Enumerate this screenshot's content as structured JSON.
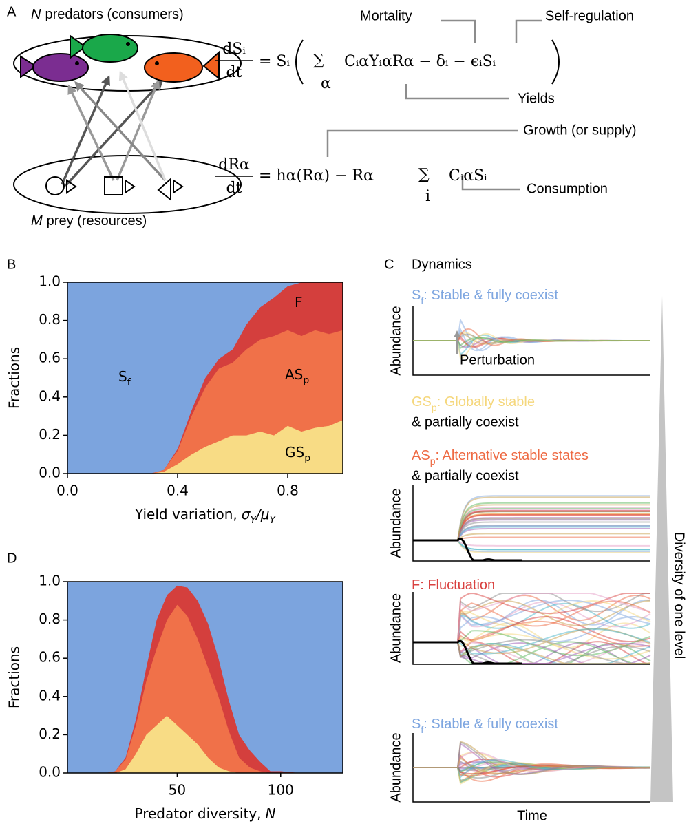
{
  "panel_a": {
    "label": "A",
    "predators": {
      "symbol": "N",
      "text": "predators (consumers)"
    },
    "prey": {
      "symbol": "M",
      "text": "prey (resources)"
    },
    "eq1": {
      "numerator": "dSᵢ",
      "denominator": "dt",
      "rhs": "= Sᵢ",
      "sum": "∑",
      "sum_index": "α",
      "terms": "CᵢαYᵢαRα − δᵢ − ϵᵢSᵢ"
    },
    "eq2": {
      "numerator": "dRα",
      "denominator": "dt",
      "rhs": "= hα(Rα) − Rα",
      "sum": "∑",
      "sum_index": "i",
      "terms": "CᵢαSᵢ"
    },
    "annotations": [
      "Mortality",
      "Self-regulation",
      "Yields",
      "Growth (or supply)",
      "Consumption"
    ]
  },
  "panel_c": {
    "label": "C",
    "title": "Dynamics",
    "y_label": "Abundance",
    "x_label": "Time",
    "side_label": "Diversity of one level",
    "perturbation": "Perturbation",
    "states": [
      {
        "symbol": "S",
        "sub": "f",
        "text": ": Stable & fully coexist",
        "color": "#7ea6e0"
      },
      {
        "symbol": "GS",
        "sub": "p",
        "text": ": Globally stable",
        "text2": "& partially coexist",
        "color": "#f5d77c"
      },
      {
        "symbol": "AS",
        "sub": "p",
        "text": ": Alternative stable states",
        "text2": "& partially coexist",
        "color": "#ee6a43"
      },
      {
        "symbol": "F",
        "text": ": Fluctuation",
        "color": "#d9413f"
      },
      {
        "symbol": "S",
        "sub": "f",
        "text": ": Stable & fully coexist",
        "color": "#7ea6e0"
      }
    ]
  },
  "chart_data": [
    {
      "type": "stacked_area",
      "label": "B",
      "y_label": "Fractions",
      "x_label": "Yield variation,",
      "x_label_symbol": [
        "σ",
        "Y",
        "/μ",
        "Y"
      ],
      "x": [
        0,
        0.05,
        0.1,
        0.15,
        0.2,
        0.25,
        0.3,
        0.35,
        0.4,
        0.45,
        0.5,
        0.55,
        0.6,
        0.65,
        0.7,
        0.75,
        0.8,
        0.85,
        0.9,
        0.95,
        1.0
      ],
      "series": [
        {
          "color": "#f8dc85",
          "values": [
            0,
            0,
            0,
            0,
            0,
            0,
            0,
            0.01,
            0.05,
            0.1,
            0.14,
            0.17,
            0.2,
            0.2,
            0.22,
            0.2,
            0.25,
            0.22,
            0.24,
            0.25,
            0.28
          ]
        },
        {
          "color": "#f07149",
          "values": [
            0,
            0,
            0,
            0,
            0,
            0,
            0,
            0.01,
            0.07,
            0.2,
            0.31,
            0.38,
            0.38,
            0.45,
            0.48,
            0.52,
            0.5,
            0.5,
            0.51,
            0.48,
            0.47
          ]
        },
        {
          "color": "#d43f3d",
          "values": [
            0,
            0,
            0,
            0,
            0,
            0,
            0,
            0,
            0.01,
            0.03,
            0.05,
            0.05,
            0.07,
            0.13,
            0.17,
            0.2,
            0.23,
            0.28,
            0.25,
            0.27,
            0.25
          ]
        },
        {
          "color": "#7ca4de",
          "values": [
            1,
            1,
            1,
            1,
            1,
            1,
            1,
            0.98,
            0.87,
            0.67,
            0.5,
            0.4,
            0.35,
            0.22,
            0.13,
            0.08,
            0.02,
            0,
            0,
            0,
            0
          ]
        }
      ],
      "region_labels": [
        {
          "symbol": "S",
          "sub": "f"
        },
        {
          "symbol": "F"
        },
        {
          "symbol": "AS",
          "sub": "p"
        },
        {
          "symbol": "GS",
          "sub": "p"
        }
      ],
      "xlim": [
        0,
        1.0
      ],
      "xticks": [
        {
          "value": 0,
          "label": "0.0"
        },
        {
          "value": 0.4,
          "label": "0.4"
        },
        {
          "value": 0.8,
          "label": "0.8"
        }
      ],
      "ylim": [
        0,
        1.0
      ],
      "yticks": [
        {
          "value": 0,
          "label": "0.0"
        },
        {
          "value": 0.2,
          "label": "0.2"
        },
        {
          "value": 0.4,
          "label": "0.4"
        },
        {
          "value": 0.6,
          "label": "0.6"
        },
        {
          "value": 0.8,
          "label": "0.8"
        },
        {
          "value": 1.0,
          "label": "1.0"
        }
      ]
    },
    {
      "type": "stacked_area",
      "label": "D",
      "y_label": "Fractions",
      "x_label": "Predator diversity,",
      "x_label_symbol": [
        "N"
      ],
      "x": [
        -3,
        15,
        20,
        25,
        30,
        35,
        40,
        45,
        50,
        55,
        60,
        65,
        70,
        75,
        80,
        85,
        90,
        95,
        100,
        105,
        110,
        130
      ],
      "series": [
        {
          "color": "#f8dc85",
          "values": [
            0,
            0,
            0,
            0.02,
            0.1,
            0.2,
            0.25,
            0.3,
            0.25,
            0.2,
            0.15,
            0.08,
            0.03,
            0.01,
            0,
            0,
            0,
            0,
            0,
            0,
            0,
            0
          ]
        },
        {
          "color": "#f07149",
          "values": [
            0,
            0,
            0.01,
            0.05,
            0.15,
            0.28,
            0.4,
            0.5,
            0.63,
            0.62,
            0.55,
            0.47,
            0.37,
            0.21,
            0.08,
            0.03,
            0.01,
            0,
            0,
            0,
            0,
            0
          ]
        },
        {
          "color": "#d43f3d",
          "values": [
            0,
            0,
            0,
            0.01,
            0.03,
            0.07,
            0.15,
            0.13,
            0.1,
            0.15,
            0.2,
            0.23,
            0.2,
            0.16,
            0.12,
            0.09,
            0.05,
            0.01,
            0.01,
            0.005,
            0,
            0
          ]
        },
        {
          "color": "#7ca4de",
          "values": [
            1,
            1,
            0.99,
            0.92,
            0.72,
            0.45,
            0.2,
            0.07,
            0.02,
            0.03,
            0.1,
            0.22,
            0.4,
            0.62,
            0.8,
            0.88,
            0.94,
            0.99,
            0.99,
            0.995,
            1,
            1
          ]
        }
      ],
      "xlim": [
        -3,
        130
      ],
      "xticks": [
        50,
        100
      ],
      "ylim": [
        0,
        1.0
      ],
      "yticks": [
        {
          "value": 0,
          "label": "0.0"
        },
        {
          "value": 0.2,
          "label": "0.2"
        },
        {
          "value": 0.4,
          "label": "0.4"
        },
        {
          "value": 0.6,
          "label": "0.6"
        },
        {
          "value": 0.8,
          "label": "0.8"
        },
        {
          "value": 1.0,
          "label": "1.0"
        }
      ]
    }
  ]
}
